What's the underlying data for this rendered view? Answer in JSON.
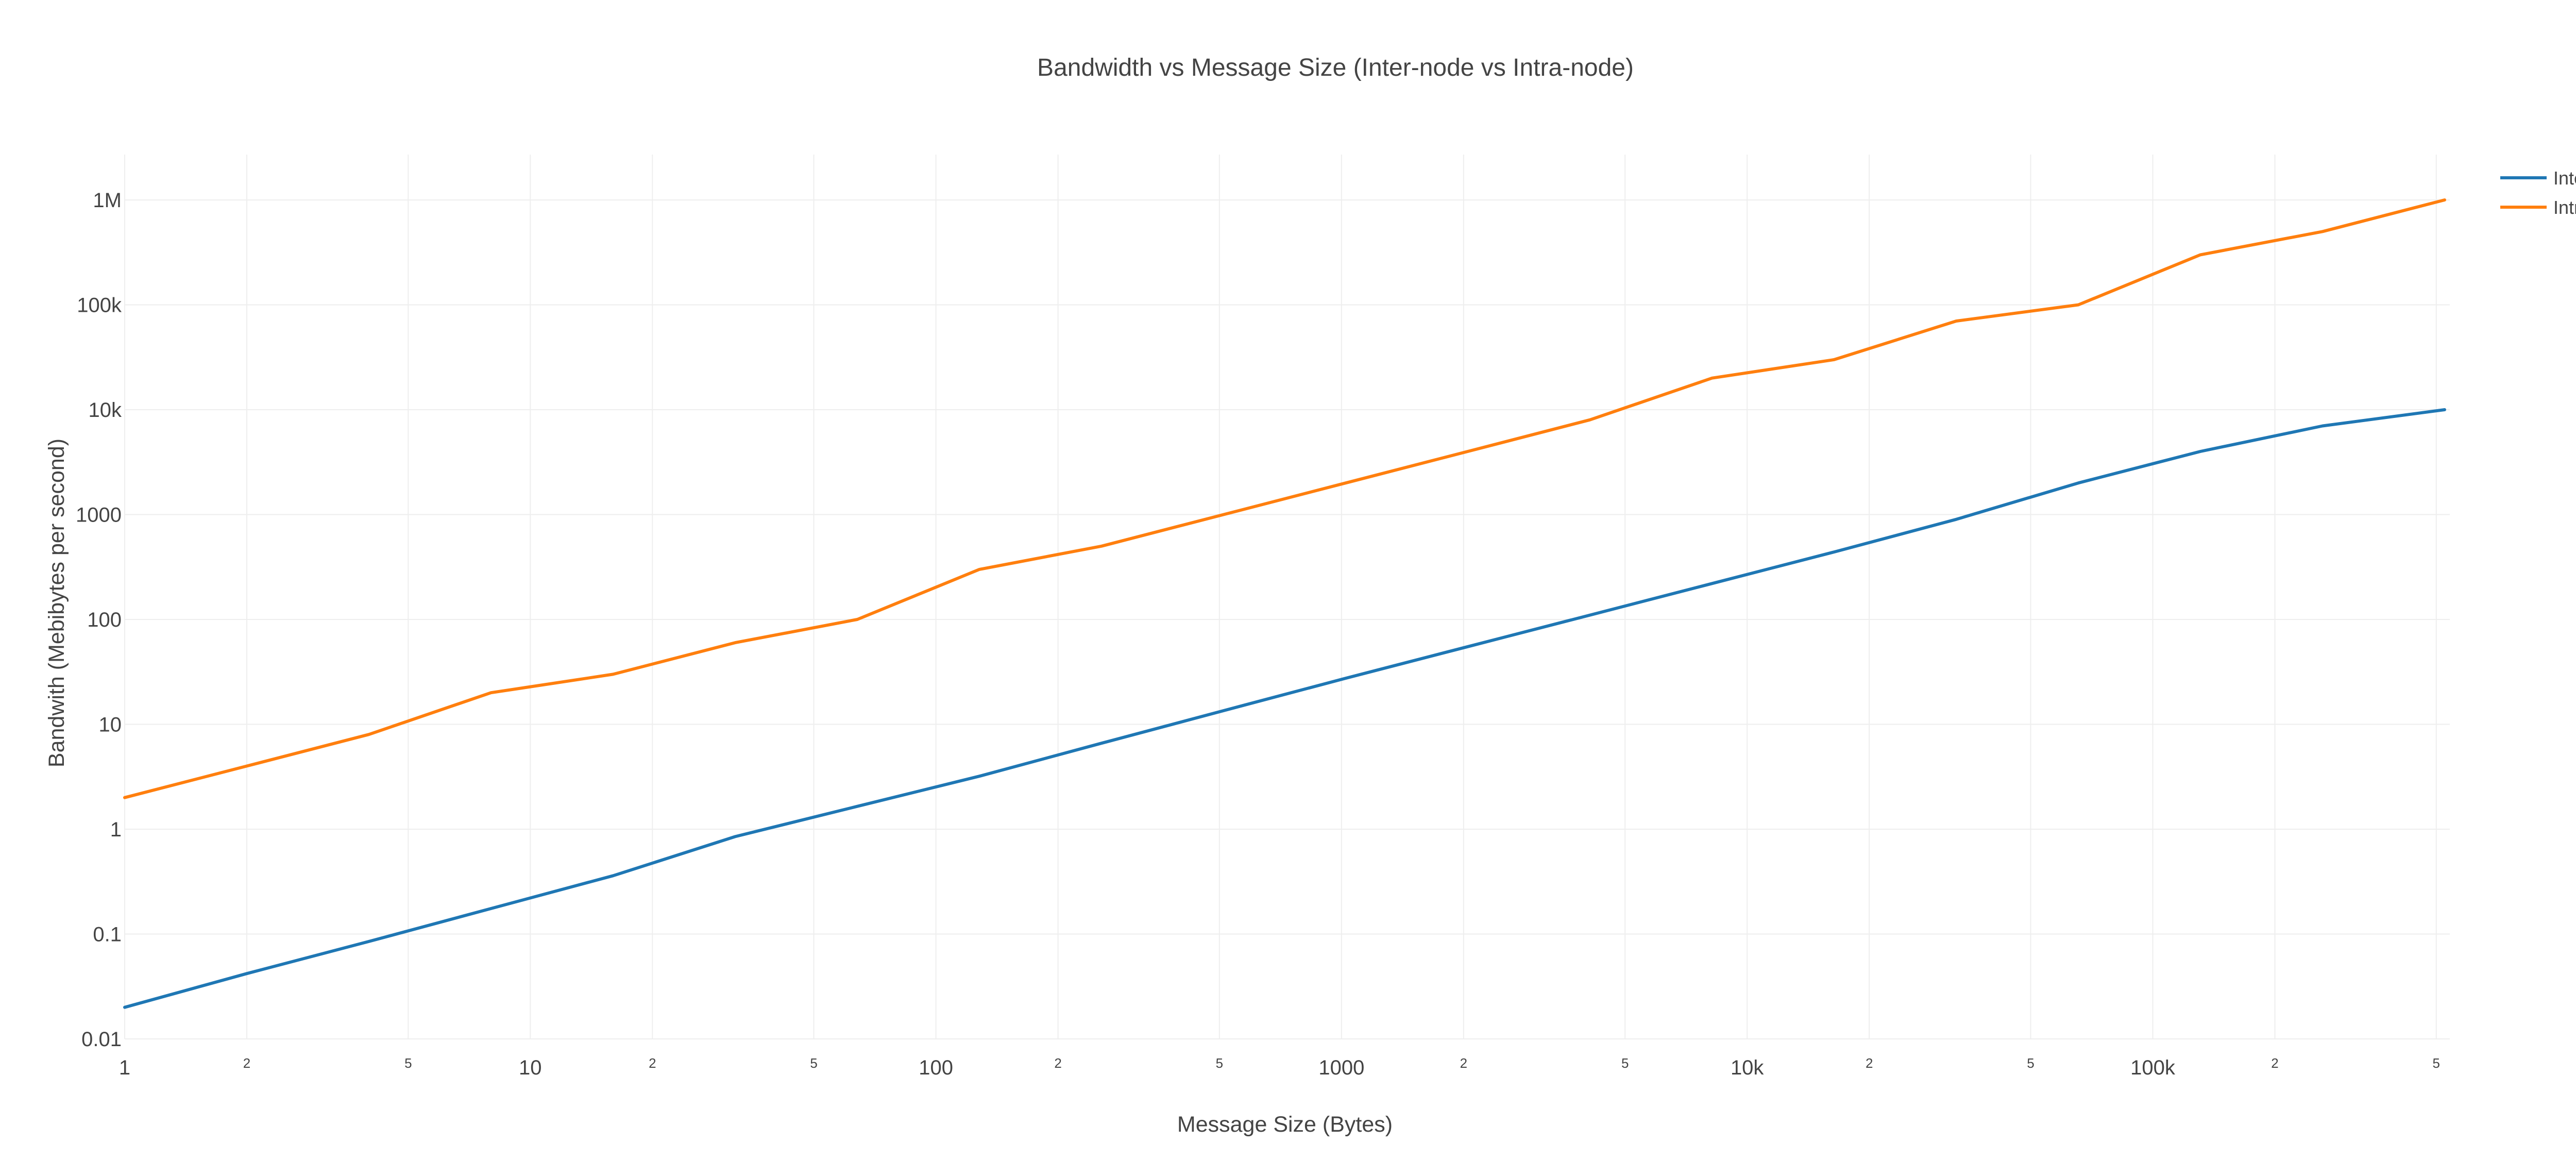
{
  "chart_data": {
    "type": "line",
    "title": "Bandwidth vs Message Size (Inter-node vs Intra-node)",
    "xlabel": "Message Size (Bytes)",
    "ylabel": "Bandwith (Mebibytes per second)",
    "xscale": "log",
    "yscale": "log",
    "xlim": [
      1,
      524288
    ],
    "ylim": [
      0.01,
      1000000
    ],
    "grid": true,
    "legend_position": "top-right",
    "x_ticks": [
      {
        "value": 1,
        "label": "1",
        "major": true
      },
      {
        "value": 2,
        "label": "2",
        "major": false
      },
      {
        "value": 5,
        "label": "5",
        "major": false
      },
      {
        "value": 10,
        "label": "10",
        "major": true
      },
      {
        "value": 20,
        "label": "2",
        "major": false
      },
      {
        "value": 50,
        "label": "5",
        "major": false
      },
      {
        "value": 100,
        "label": "100",
        "major": true
      },
      {
        "value": 200,
        "label": "2",
        "major": false
      },
      {
        "value": 500,
        "label": "5",
        "major": false
      },
      {
        "value": 1000,
        "label": "1000",
        "major": true
      },
      {
        "value": 2000,
        "label": "2",
        "major": false
      },
      {
        "value": 5000,
        "label": "5",
        "major": false
      },
      {
        "value": 10000,
        "label": "10k",
        "major": true
      },
      {
        "value": 20000,
        "label": "2",
        "major": false
      },
      {
        "value": 50000,
        "label": "5",
        "major": false
      },
      {
        "value": 100000,
        "label": "100k",
        "major": true
      },
      {
        "value": 200000,
        "label": "2",
        "major": false
      },
      {
        "value": 500000,
        "label": "5",
        "major": false
      }
    ],
    "y_ticks": [
      {
        "value": 0.01,
        "label": "0.01"
      },
      {
        "value": 0.1,
        "label": "0.1"
      },
      {
        "value": 1,
        "label": "1"
      },
      {
        "value": 10,
        "label": "10"
      },
      {
        "value": 100,
        "label": "100"
      },
      {
        "value": 1000,
        "label": "1000"
      },
      {
        "value": 10000,
        "label": "10k"
      },
      {
        "value": 100000,
        "label": "100k"
      },
      {
        "value": 1000000,
        "label": "1M"
      }
    ],
    "x": [
      1,
      2,
      4,
      8,
      16,
      32,
      64,
      128,
      256,
      512,
      1024,
      2048,
      4096,
      8192,
      16384,
      32768,
      65536,
      131072,
      262144,
      524288
    ],
    "series": [
      {
        "name": "Inter-node",
        "color": "#1f77b4",
        "values": [
          0.02,
          0.042,
          0.085,
          0.175,
          0.36,
          0.85,
          1.65,
          3.2,
          6.6,
          13.5,
          27.5,
          55,
          110,
          220,
          440,
          900,
          2000,
          4000,
          7000,
          10000
        ]
      },
      {
        "name": "Intra-node",
        "color": "#ff7f0e",
        "values": [
          2,
          4,
          8,
          20,
          30,
          60,
          100,
          300,
          500,
          1000,
          2000,
          4000,
          8000,
          20000,
          30000,
          70000,
          100000,
          300000,
          500000,
          1000000
        ]
      }
    ]
  }
}
